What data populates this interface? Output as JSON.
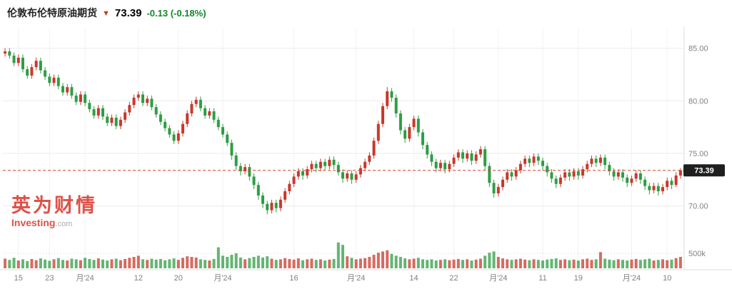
{
  "header": {
    "title": "伦敦布伦特原油期货",
    "arrow_icon": "▼",
    "price": "73.39",
    "change": "-0.13",
    "change_percent": "(-0.18%)"
  },
  "watermark": {
    "cn": "英为财情",
    "en_bold": "Investing",
    "en_suffix": ".com"
  },
  "colors": {
    "up": "#C8392B",
    "down": "#2E9E44",
    "title_text": "#222222",
    "price_text": "#000000",
    "change_text": "#13862B",
    "arrow": "#C8392B",
    "price_line": "#D9402F",
    "price_tag_bg": "#1F1F1F",
    "price_tag_text": "#FFFFFF",
    "grid": "#EBEBEB",
    "grid_vertical": "#F2F2F2",
    "axis_border": "#DDDDDD",
    "axis_text": "#808080",
    "watermark_red": "rgba(217,57,45,0.88)",
    "watermark_gray": "#A9A9A9"
  },
  "chart_data": {
    "type": "candlestick",
    "title": "伦敦布伦特原油期货",
    "last_price": 73.39,
    "price_line": 73.39,
    "price_tag_label": "73.39",
    "convention": "china-red-up-green-down",
    "y_gridlines": [
      85,
      80,
      75,
      70
    ],
    "y_axis_labels": [
      "85.00",
      "80.00",
      "75.00",
      "70.00"
    ],
    "ylim": [
      67.4,
      86.6
    ],
    "volume_axis_label": "500k",
    "volume_gridline": 500,
    "volume_max": 950,
    "x_ticks": [
      {
        "i": 3,
        "label": "15"
      },
      {
        "i": 10,
        "label": "23"
      },
      {
        "i": 18,
        "label": "月'24"
      },
      {
        "i": 30,
        "label": "12"
      },
      {
        "i": 39,
        "label": "20"
      },
      {
        "i": 49,
        "label": "月'24"
      },
      {
        "i": 65,
        "label": "16"
      },
      {
        "i": 79,
        "label": "月'24"
      },
      {
        "i": 92,
        "label": "14"
      },
      {
        "i": 101,
        "label": "22"
      },
      {
        "i": 111,
        "label": "月'24"
      },
      {
        "i": 121,
        "label": "11"
      },
      {
        "i": 129,
        "label": "19"
      },
      {
        "i": 141,
        "label": "月'24"
      },
      {
        "i": 149,
        "label": "10"
      }
    ],
    "candles": [
      [
        84.5,
        85.0,
        84.2,
        84.7
      ],
      [
        84.7,
        85.0,
        84.0,
        84.3
      ],
      [
        84.3,
        84.6,
        83.3,
        83.6
      ],
      [
        83.6,
        84.4,
        83.3,
        84.1
      ],
      [
        84.1,
        84.4,
        82.7,
        83.0
      ],
      [
        83.0,
        83.3,
        82.1,
        82.4
      ],
      [
        82.4,
        83.5,
        82.1,
        83.2
      ],
      [
        83.2,
        84.1,
        82.9,
        83.8
      ],
      [
        83.8,
        84.1,
        82.6,
        82.9
      ],
      [
        82.9,
        83.2,
        82.0,
        82.3
      ],
      [
        82.3,
        82.6,
        81.4,
        81.7
      ],
      [
        81.7,
        82.5,
        81.4,
        82.2
      ],
      [
        82.2,
        82.5,
        81.1,
        81.4
      ],
      [
        81.4,
        81.7,
        80.5,
        80.8
      ],
      [
        80.8,
        81.6,
        80.5,
        81.3
      ],
      [
        81.3,
        81.6,
        80.2,
        80.5
      ],
      [
        80.5,
        80.8,
        79.6,
        79.9
      ],
      [
        79.9,
        80.9,
        79.6,
        80.6
      ],
      [
        80.6,
        80.9,
        79.5,
        79.8
      ],
      [
        79.8,
        80.1,
        78.9,
        79.2
      ],
      [
        79.2,
        79.5,
        78.3,
        78.6
      ],
      [
        78.6,
        79.6,
        78.3,
        79.3
      ],
      [
        79.3,
        79.6,
        78.2,
        78.5
      ],
      [
        78.5,
        78.8,
        77.6,
        77.9
      ],
      [
        77.9,
        78.7,
        77.6,
        78.4
      ],
      [
        78.4,
        78.7,
        77.3,
        77.6
      ],
      [
        77.6,
        78.5,
        77.3,
        78.2
      ],
      [
        78.2,
        79.2,
        77.9,
        78.9
      ],
      [
        78.9,
        79.9,
        78.6,
        79.6
      ],
      [
        79.6,
        80.6,
        79.3,
        80.3
      ],
      [
        80.3,
        80.9,
        80.0,
        80.6
      ],
      [
        80.6,
        80.9,
        79.5,
        79.8
      ],
      [
        79.8,
        80.5,
        79.5,
        80.2
      ],
      [
        80.2,
        80.5,
        79.1,
        79.4
      ],
      [
        79.4,
        79.7,
        78.4,
        78.7
      ],
      [
        78.7,
        79.0,
        77.7,
        78.0
      ],
      [
        78.0,
        78.3,
        77.1,
        77.4
      ],
      [
        77.4,
        77.7,
        76.5,
        76.8
      ],
      [
        76.8,
        77.1,
        75.9,
        76.2
      ],
      [
        76.2,
        77.2,
        75.9,
        76.9
      ],
      [
        76.9,
        78.1,
        76.6,
        77.8
      ],
      [
        77.8,
        79.1,
        77.5,
        78.8
      ],
      [
        78.8,
        80.0,
        78.5,
        79.7
      ],
      [
        79.7,
        80.4,
        79.4,
        80.1
      ],
      [
        80.1,
        80.4,
        79.0,
        79.3
      ],
      [
        79.3,
        79.6,
        78.3,
        78.6
      ],
      [
        78.6,
        79.3,
        78.3,
        79.0
      ],
      [
        79.0,
        79.3,
        77.9,
        78.2
      ],
      [
        78.2,
        78.5,
        77.2,
        77.5
      ],
      [
        77.5,
        77.8,
        76.5,
        76.8
      ],
      [
        76.8,
        77.1,
        75.7,
        76.0
      ],
      [
        76.0,
        76.3,
        74.4,
        74.8
      ],
      [
        74.8,
        75.1,
        73.4,
        73.8
      ],
      [
        73.8,
        74.1,
        72.9,
        73.3
      ],
      [
        73.3,
        74.0,
        73.0,
        73.7
      ],
      [
        73.7,
        74.0,
        72.4,
        72.8
      ],
      [
        72.8,
        73.1,
        71.6,
        72.0
      ],
      [
        72.0,
        72.3,
        70.6,
        71.0
      ],
      [
        71.0,
        71.3,
        69.8,
        70.2
      ],
      [
        70.2,
        70.5,
        69.2,
        69.6
      ],
      [
        69.6,
        70.6,
        69.3,
        70.3
      ],
      [
        70.3,
        70.6,
        69.4,
        69.8
      ],
      [
        69.8,
        70.9,
        69.5,
        70.6
      ],
      [
        70.6,
        71.7,
        70.3,
        71.4
      ],
      [
        71.4,
        72.4,
        71.1,
        72.1
      ],
      [
        72.1,
        73.1,
        71.8,
        72.8
      ],
      [
        72.8,
        73.6,
        72.5,
        73.3
      ],
      [
        73.3,
        73.6,
        72.5,
        72.9
      ],
      [
        72.9,
        73.8,
        72.6,
        73.5
      ],
      [
        73.5,
        74.3,
        73.2,
        74.0
      ],
      [
        74.0,
        74.3,
        73.2,
        73.6
      ],
      [
        73.6,
        74.5,
        73.3,
        74.2
      ],
      [
        74.2,
        74.5,
        73.4,
        73.8
      ],
      [
        73.8,
        74.7,
        73.5,
        74.4
      ],
      [
        74.4,
        74.7,
        73.5,
        73.9
      ],
      [
        73.9,
        74.2,
        72.9,
        73.2
      ],
      [
        73.2,
        73.5,
        72.2,
        72.6
      ],
      [
        72.6,
        73.4,
        72.3,
        73.1
      ],
      [
        73.1,
        73.4,
        72.1,
        72.5
      ],
      [
        72.5,
        73.3,
        72.2,
        73.0
      ],
      [
        73.0,
        73.9,
        72.7,
        73.6
      ],
      [
        73.6,
        74.5,
        73.3,
        74.2
      ],
      [
        74.2,
        75.1,
        73.9,
        74.8
      ],
      [
        74.8,
        76.5,
        74.5,
        76.2
      ],
      [
        76.2,
        78.1,
        75.9,
        77.8
      ],
      [
        77.8,
        79.8,
        77.5,
        79.5
      ],
      [
        79.5,
        81.3,
        79.2,
        80.9
      ],
      [
        80.9,
        81.2,
        79.9,
        80.3
      ],
      [
        80.3,
        80.6,
        78.4,
        78.8
      ],
      [
        78.8,
        79.1,
        76.8,
        77.2
      ],
      [
        77.2,
        77.5,
        76.0,
        76.4
      ],
      [
        76.4,
        77.8,
        76.1,
        77.5
      ],
      [
        77.5,
        78.6,
        77.2,
        78.3
      ],
      [
        78.3,
        78.6,
        76.6,
        77.0
      ],
      [
        77.0,
        77.3,
        75.4,
        75.8
      ],
      [
        75.8,
        76.1,
        74.5,
        74.9
      ],
      [
        74.9,
        75.2,
        73.8,
        74.2
      ],
      [
        74.2,
        74.5,
        73.2,
        73.6
      ],
      [
        73.6,
        74.4,
        73.3,
        74.1
      ],
      [
        74.1,
        74.4,
        73.1,
        73.5
      ],
      [
        73.5,
        74.3,
        73.2,
        74.0
      ],
      [
        74.0,
        74.9,
        73.7,
        74.6
      ],
      [
        74.6,
        75.4,
        74.3,
        75.1
      ],
      [
        75.1,
        75.4,
        74.1,
        74.5
      ],
      [
        74.5,
        75.3,
        74.2,
        75.0
      ],
      [
        75.0,
        75.3,
        73.9,
        74.3
      ],
      [
        74.3,
        75.2,
        74.0,
        74.9
      ],
      [
        74.9,
        75.7,
        74.6,
        75.4
      ],
      [
        75.4,
        75.7,
        73.4,
        73.8
      ],
      [
        73.8,
        74.1,
        71.8,
        72.2
      ],
      [
        72.2,
        72.5,
        70.8,
        71.2
      ],
      [
        71.2,
        72.1,
        70.9,
        71.8
      ],
      [
        71.8,
        72.8,
        71.5,
        72.5
      ],
      [
        72.5,
        73.5,
        72.2,
        73.2
      ],
      [
        73.2,
        73.5,
        72.4,
        72.8
      ],
      [
        72.8,
        73.7,
        72.5,
        73.4
      ],
      [
        73.4,
        74.3,
        73.1,
        74.0
      ],
      [
        74.0,
        74.8,
        73.7,
        74.5
      ],
      [
        74.5,
        74.8,
        73.7,
        74.1
      ],
      [
        74.1,
        75.0,
        73.8,
        74.7
      ],
      [
        74.7,
        75.0,
        73.9,
        74.3
      ],
      [
        74.3,
        74.6,
        73.4,
        73.8
      ],
      [
        73.8,
        74.1,
        72.8,
        73.2
      ],
      [
        73.2,
        73.5,
        72.2,
        72.6
      ],
      [
        72.6,
        72.9,
        71.7,
        72.1
      ],
      [
        72.1,
        73.0,
        71.8,
        72.7
      ],
      [
        72.7,
        73.5,
        72.4,
        73.2
      ],
      [
        73.2,
        73.5,
        72.4,
        72.8
      ],
      [
        72.8,
        73.6,
        72.5,
        73.3
      ],
      [
        73.3,
        73.6,
        72.5,
        72.9
      ],
      [
        72.9,
        73.8,
        72.6,
        73.5
      ],
      [
        73.5,
        74.3,
        73.2,
        74.0
      ],
      [
        74.0,
        74.8,
        73.7,
        74.5
      ],
      [
        74.5,
        74.8,
        73.7,
        74.1
      ],
      [
        74.1,
        74.9,
        73.8,
        74.6
      ],
      [
        74.6,
        74.9,
        73.5,
        73.9
      ],
      [
        73.9,
        74.2,
        72.9,
        73.3
      ],
      [
        73.3,
        73.6,
        72.4,
        72.8
      ],
      [
        72.8,
        73.5,
        72.5,
        73.2
      ],
      [
        73.2,
        73.5,
        72.3,
        72.7
      ],
      [
        72.7,
        73.0,
        71.8,
        72.2
      ],
      [
        72.2,
        72.9,
        71.9,
        72.6
      ],
      [
        72.6,
        73.4,
        72.3,
        73.1
      ],
      [
        73.1,
        73.4,
        72.1,
        72.5
      ],
      [
        72.5,
        72.8,
        71.5,
        71.9
      ],
      [
        71.9,
        72.2,
        71.1,
        71.5
      ],
      [
        71.5,
        72.2,
        71.2,
        71.9
      ],
      [
        71.9,
        72.2,
        71.0,
        71.4
      ],
      [
        71.4,
        72.1,
        71.1,
        71.8
      ],
      [
        71.8,
        72.7,
        71.5,
        72.4
      ],
      [
        72.4,
        72.7,
        71.6,
        72.0
      ],
      [
        72.0,
        73.2,
        71.8,
        72.9
      ],
      [
        72.9,
        73.6,
        72.6,
        73.39
      ]
    ],
    "volumes": [
      320,
      280,
      350,
      260,
      300,
      240,
      310,
      270,
      330,
      290,
      250,
      300,
      340,
      280,
      260,
      320,
      300,
      270,
      350,
      310,
      280,
      330,
      290,
      260,
      300,
      320,
      270,
      310,
      350,
      380,
      420,
      300,
      280,
      320,
      290,
      310,
      270,
      300,
      330,
      280,
      350,
      400,
      380,
      360,
      300,
      280,
      260,
      310,
      700,
      420,
      380,
      450,
      500,
      360,
      300,
      340,
      380,
      420,
      360,
      400,
      320,
      280,
      300,
      340,
      310,
      290,
      330,
      270,
      300,
      320,
      280,
      300,
      260,
      290,
      310,
      860,
      780,
      400,
      350,
      300,
      320,
      340,
      380,
      450,
      520,
      560,
      600,
      480,
      420,
      380,
      330,
      300,
      320,
      350,
      300,
      280,
      300,
      260,
      280,
      300,
      270,
      290,
      310,
      280,
      300,
      260,
      290,
      320,
      420,
      520,
      560,
      380,
      330,
      300,
      280,
      300,
      320,
      290,
      270,
      300,
      280,
      260,
      290,
      310,
      330,
      280,
      300,
      270,
      290,
      260,
      300,
      320,
      280,
      300,
      540,
      320,
      290,
      270,
      300,
      280,
      260,
      290,
      310,
      280,
      300,
      320,
      260,
      280,
      300,
      270,
      290,
      340,
      380
    ]
  }
}
